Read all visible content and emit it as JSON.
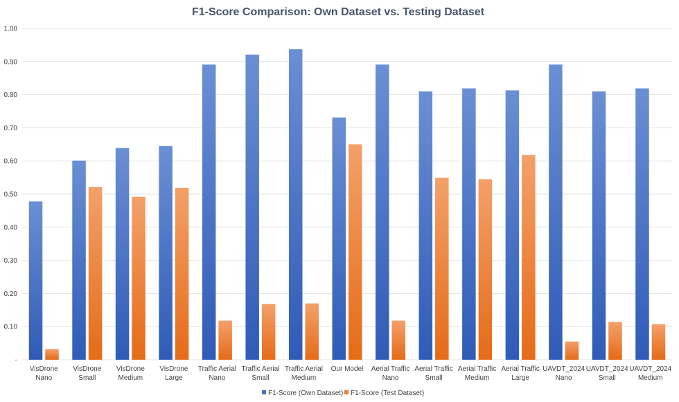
{
  "chart_data": {
    "type": "bar",
    "title": "F1-Score Comparison: Own Dataset vs. Testing Dataset",
    "xlabel": "",
    "ylabel": "",
    "ylim": [
      0,
      1
    ],
    "y_ticks": [
      "-",
      "0.10",
      "0.20",
      "0.30",
      "0.40",
      "0.50",
      "0.60",
      "0.70",
      "0.80",
      "0.90",
      "1.00"
    ],
    "grid": true,
    "legend_position": "bottom",
    "categories": [
      [
        "VisDrone",
        "Nano"
      ],
      [
        "VisDrone",
        "Small"
      ],
      [
        "VisDrone",
        "Medium"
      ],
      [
        "VisDrone",
        "Large"
      ],
      [
        "Traffic Aerial",
        "Nano"
      ],
      [
        "Traffic Aerial",
        "Small"
      ],
      [
        "Traffic Aerial",
        "Medium"
      ],
      [
        "Our Model"
      ],
      [
        "Aerial Traffic",
        "Nano"
      ],
      [
        "Aerial Traffic",
        "Small"
      ],
      [
        "Aerial Traffic",
        "Medium"
      ],
      [
        "Aerial Traffic",
        "Large"
      ],
      [
        "UAVDT_2024",
        "Nano"
      ],
      [
        "UAVDT_2024",
        "Small"
      ],
      [
        "UAVDT_2024",
        "Medium"
      ]
    ],
    "series": [
      {
        "name": "F1-Score (Own Dataset)",
        "color": "#4472c4",
        "values": [
          0.478,
          0.601,
          0.639,
          0.645,
          0.891,
          0.921,
          0.937,
          0.731,
          0.891,
          0.81,
          0.819,
          0.813,
          0.891,
          0.81,
          0.819
        ]
      },
      {
        "name": "F1-Score (Test Dataset)",
        "color": "#ed7d31",
        "values": [
          0.032,
          0.521,
          0.492,
          0.519,
          0.118,
          0.168,
          0.17,
          0.65,
          0.118,
          0.549,
          0.545,
          0.618,
          0.055,
          0.114,
          0.107
        ]
      }
    ]
  }
}
